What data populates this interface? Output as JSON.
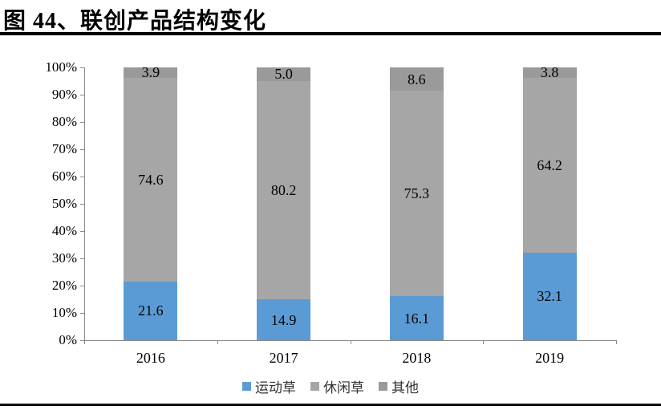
{
  "figure": {
    "title": "图 44、联创产品结构变化"
  },
  "chart_data": {
    "type": "bar",
    "variant": "stacked-percent-column",
    "title": "联创产品结构变化",
    "categories": [
      "2016",
      "2017",
      "2018",
      "2019"
    ],
    "series": [
      {
        "name": "运动草",
        "color": "#5B9BD5",
        "values": [
          21.6,
          14.9,
          16.1,
          32.1
        ],
        "labels": [
          "21.6",
          "14.9",
          "16.1",
          "32.1"
        ]
      },
      {
        "name": "休闲草",
        "color": "#A6A6A6",
        "values": [
          74.6,
          80.2,
          75.3,
          64.2
        ],
        "labels": [
          "74.6",
          "80.2",
          "75.3",
          "64.2"
        ]
      },
      {
        "name": "其他",
        "color": "#9A9A9A",
        "values": [
          3.9,
          5.0,
          8.6,
          3.8
        ],
        "labels": [
          "3.9",
          "5.0",
          "8.6",
          "3.8"
        ]
      }
    ],
    "y_ticks": [
      "100%",
      "90%",
      "80%",
      "70%",
      "60%",
      "50%",
      "40%",
      "30%",
      "20%",
      "10%",
      "0%"
    ],
    "ylim": [
      0,
      100
    ],
    "xlabel": "",
    "ylabel": "",
    "grid": "off",
    "value_labels": "inside-center",
    "legend_position": "bottom",
    "axis_color": "#8A8A8A",
    "label_color": "#000000"
  }
}
